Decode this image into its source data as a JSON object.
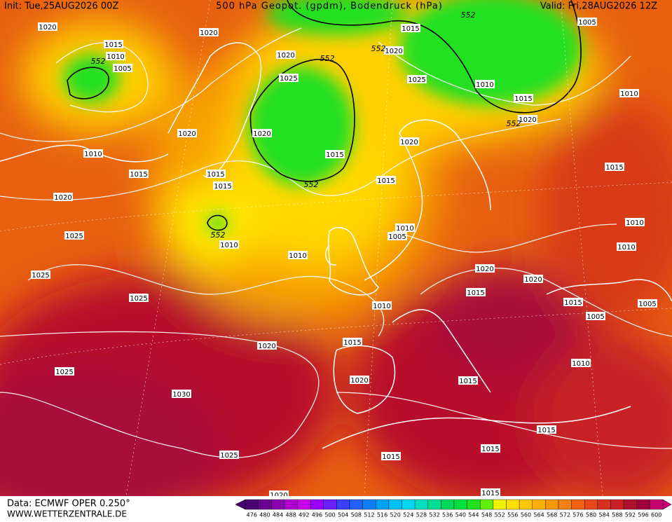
{
  "header": {
    "init": "Init: Tue,25AUG2026 00Z",
    "title": "500 hPa Geopot. (gpdm), Bodendruck (hPa)",
    "valid": "Valid: Fri,28AUG2026 12Z"
  },
  "footer": {
    "source": "Data: ECMWF OPER 0.250°",
    "site": "WWW.WETTERZENTRALE.DE"
  },
  "isobar_labels": [
    "1020",
    "1020",
    "1015",
    "1010",
    "1005",
    "1020",
    "1025",
    "1015",
    "1020",
    "1005",
    "1025",
    "1010",
    "1015",
    "1020",
    "1010",
    "1020",
    "1010",
    "1020",
    "1020",
    "1015",
    "1015",
    "1015",
    "1015",
    "1015",
    "1015",
    "1020",
    "1010",
    "1010",
    "1005",
    "1025",
    "1010",
    "1010",
    "1010",
    "1020",
    "1025",
    "1020",
    "1015",
    "1025",
    "1015",
    "1010",
    "1005",
    "1005",
    "1015",
    "1020",
    "1010",
    "1025",
    "1020",
    "1015",
    "1030",
    "1015",
    "1015",
    "1025",
    "1015",
    "1015",
    "1020"
  ],
  "height_labels": [
    "552",
    "552",
    "552",
    "552",
    "552",
    "552",
    "552"
  ],
  "colorbar": {
    "levels": [
      476,
      480,
      484,
      488,
      492,
      496,
      500,
      504,
      508,
      512,
      516,
      520,
      524,
      528,
      532,
      536,
      540,
      544,
      548,
      552,
      556,
      560,
      564,
      568,
      572,
      576,
      580,
      584,
      588,
      592,
      596,
      600
    ],
    "colors": [
      "#4a0070",
      "#6a0090",
      "#8c00b0",
      "#b000d0",
      "#c800e8",
      "#9a00ff",
      "#6a20ff",
      "#3a40ff",
      "#2060ff",
      "#1080ff",
      "#00a0ff",
      "#00c0ff",
      "#00d8f0",
      "#00e0c0",
      "#00e090",
      "#00d860",
      "#00e040",
      "#20e020",
      "#60f000",
      "#f0f000",
      "#ffe000",
      "#ffc800",
      "#ffb000",
      "#ff9800",
      "#f88010",
      "#f06010",
      "#e84818",
      "#d83020",
      "#c82028",
      "#b01030",
      "#a00038",
      "#c80070"
    ]
  }
}
